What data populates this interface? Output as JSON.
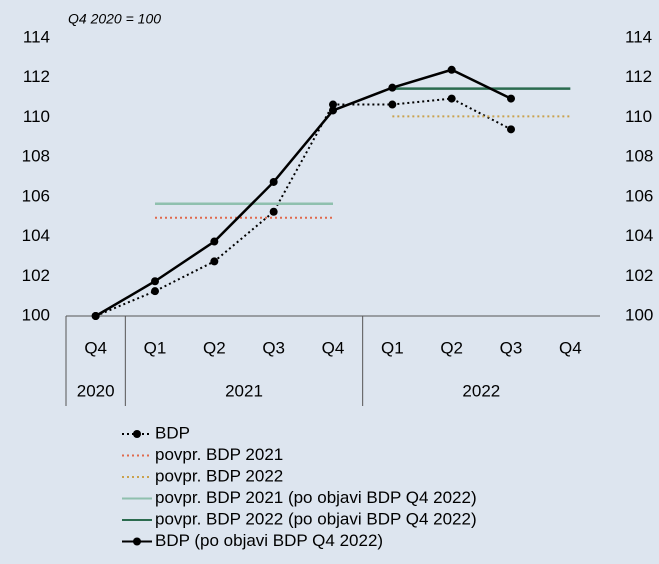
{
  "chart_data": {
    "type": "line",
    "annotation": "Q4 2020 = 100",
    "groups": [
      {
        "name": "2020",
        "categories": [
          "Q4"
        ]
      },
      {
        "name": "2021",
        "categories": [
          "Q1",
          "Q2",
          "Q3",
          "Q4"
        ]
      },
      {
        "name": "2022",
        "categories": [
          "Q1",
          "Q2",
          "Q3",
          "Q4"
        ]
      }
    ],
    "ylim": [
      100,
      114
    ],
    "yticks": [
      100,
      102,
      104,
      106,
      108,
      110,
      112,
      114
    ],
    "y2lim": [
      100,
      114
    ],
    "y2ticks": [
      100,
      102,
      104,
      106,
      108,
      110,
      112,
      114
    ],
    "series": [
      {
        "name": "BDP",
        "color": "#000000",
        "style": "dotted",
        "marker": true,
        "values": [
          100,
          101.25,
          102.75,
          105.25,
          110.65,
          110.65,
          110.95,
          109.4,
          null
        ]
      },
      {
        "name": "povpr. BDP 2021",
        "color": "#e06a4e",
        "style": "dotted",
        "marker": false,
        "values": [
          null,
          104.95,
          104.95,
          104.95,
          104.95,
          null,
          null,
          null,
          null
        ]
      },
      {
        "name": "povpr. BDP 2022",
        "color": "#c9a24e",
        "style": "dotted",
        "marker": false,
        "values": [
          null,
          null,
          null,
          null,
          null,
          110.05,
          110.05,
          110.05,
          110.05
        ]
      },
      {
        "name": "povpr. BDP 2021 (po objavi BDP Q4 2022)",
        "color": "#8fc0ae",
        "style": "solid",
        "marker": false,
        "values": [
          null,
          105.65,
          105.65,
          105.65,
          105.65,
          null,
          null,
          null,
          null
        ]
      },
      {
        "name": "povpr. BDP 2022 (po objavi BDP Q4 2022)",
        "color": "#2b6b4f",
        "style": "solid",
        "marker": false,
        "values": [
          null,
          null,
          null,
          null,
          null,
          111.45,
          111.45,
          111.45,
          111.45
        ]
      },
      {
        "name": "BDP (po objavi BDP Q4 2022)",
        "color": "#000000",
        "style": "solid",
        "marker": true,
        "values": [
          100,
          101.75,
          103.75,
          106.75,
          110.35,
          111.5,
          112.4,
          110.95,
          null
        ]
      }
    ]
  }
}
